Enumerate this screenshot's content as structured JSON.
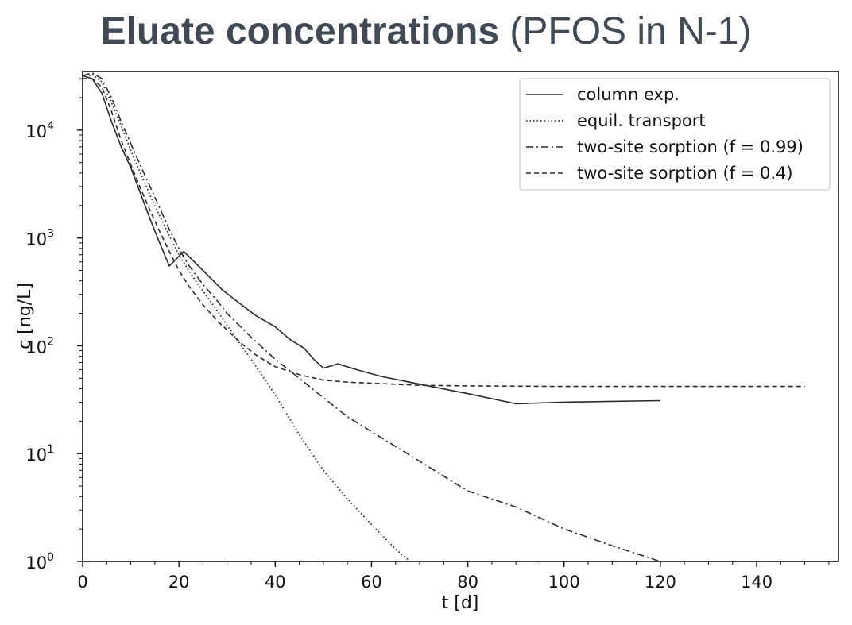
{
  "title": {
    "main": "Eluate concentrations",
    "sub": "(PFOS in N-1)"
  },
  "chart_data": {
    "type": "line",
    "xlabel": "t [d]",
    "ylabel": "c [ng/L]",
    "xlim": [
      0,
      157
    ],
    "ylim": [
      1,
      35000
    ],
    "yscale": "log",
    "xticks": [
      "0",
      "20",
      "40",
      "60",
      "80",
      "100",
      "120",
      "140"
    ],
    "yticks": [
      {
        "base": "10",
        "exp": "0"
      },
      {
        "base": "10",
        "exp": "1"
      },
      {
        "base": "10",
        "exp": "2"
      },
      {
        "base": "10",
        "exp": "3"
      },
      {
        "base": "10",
        "exp": "4"
      }
    ],
    "legend_position": "top-right",
    "colors": {
      "line": "#2b2b2b",
      "title": "#3f4a56"
    },
    "series": [
      {
        "name": "column exp.",
        "style": "solid",
        "x": [
          0,
          2,
          4,
          6,
          8,
          10,
          12,
          14,
          16,
          18,
          21,
          25,
          29,
          33,
          36,
          40,
          43,
          46,
          48,
          50,
          53,
          57,
          62,
          70,
          80,
          90,
          100,
          120
        ],
        "y": [
          32000,
          30000,
          22000,
          12000,
          7000,
          4500,
          2600,
          1500,
          900,
          550,
          750,
          500,
          330,
          240,
          190,
          150,
          115,
          95,
          75,
          62,
          68,
          60,
          52,
          44,
          36,
          29,
          30,
          31
        ]
      },
      {
        "name": "equil. transport",
        "style": "dotted",
        "x": [
          0,
          2,
          4,
          6,
          8,
          10,
          12,
          14,
          16,
          18,
          20,
          22,
          24,
          26,
          28,
          30,
          32,
          35,
          40,
          45,
          50,
          55,
          60,
          65,
          68
        ],
        "y": [
          30000,
          33000,
          28000,
          18000,
          11000,
          6500,
          4000,
          2500,
          1600,
          1050,
          700,
          500,
          370,
          280,
          210,
          155,
          115,
          75,
          35,
          15,
          7,
          3.8,
          2.2,
          1.3,
          1
        ]
      },
      {
        "name": "two-site sorption (f = 0.99)",
        "style": "dashdot",
        "x": [
          0,
          2,
          4,
          6,
          8,
          10,
          12,
          14,
          16,
          18,
          20,
          22,
          25,
          28,
          30,
          35,
          40,
          45,
          50,
          55,
          60,
          70,
          80,
          90,
          100,
          110,
          120
        ],
        "y": [
          32000,
          34000,
          30000,
          20000,
          12000,
          7500,
          4700,
          3000,
          1900,
          1200,
          800,
          560,
          370,
          260,
          200,
          120,
          75,
          50,
          33,
          22,
          16,
          8.5,
          4.5,
          3.2,
          2,
          1.4,
          1
        ]
      },
      {
        "name": "two-site sorption (f = 0.4)",
        "style": "dashed",
        "x": [
          0,
          2,
          4,
          6,
          8,
          10,
          12,
          14,
          16,
          18,
          20,
          22,
          25,
          28,
          30,
          33,
          36,
          40,
          45,
          50,
          55,
          60,
          70,
          80,
          100,
          120,
          150
        ],
        "y": [
          30000,
          30000,
          25000,
          15000,
          8000,
          4800,
          2900,
          1800,
          1150,
          750,
          500,
          360,
          240,
          170,
          140,
          105,
          82,
          64,
          54,
          48,
          46,
          45,
          43,
          42.5,
          42,
          42,
          42
        ]
      }
    ]
  }
}
